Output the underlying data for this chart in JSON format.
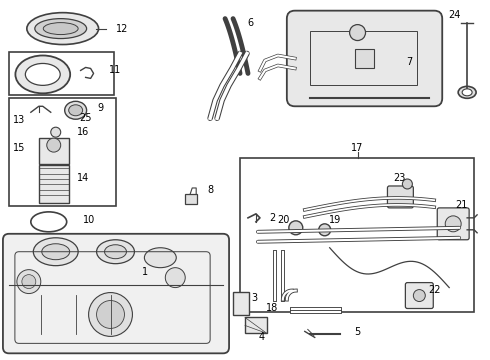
{
  "bg": "#ffffff",
  "lc": "#404040",
  "tc": "#000000",
  "fs": 7.0,
  "fw": 4.9,
  "fh": 3.6,
  "dpi": 100
}
